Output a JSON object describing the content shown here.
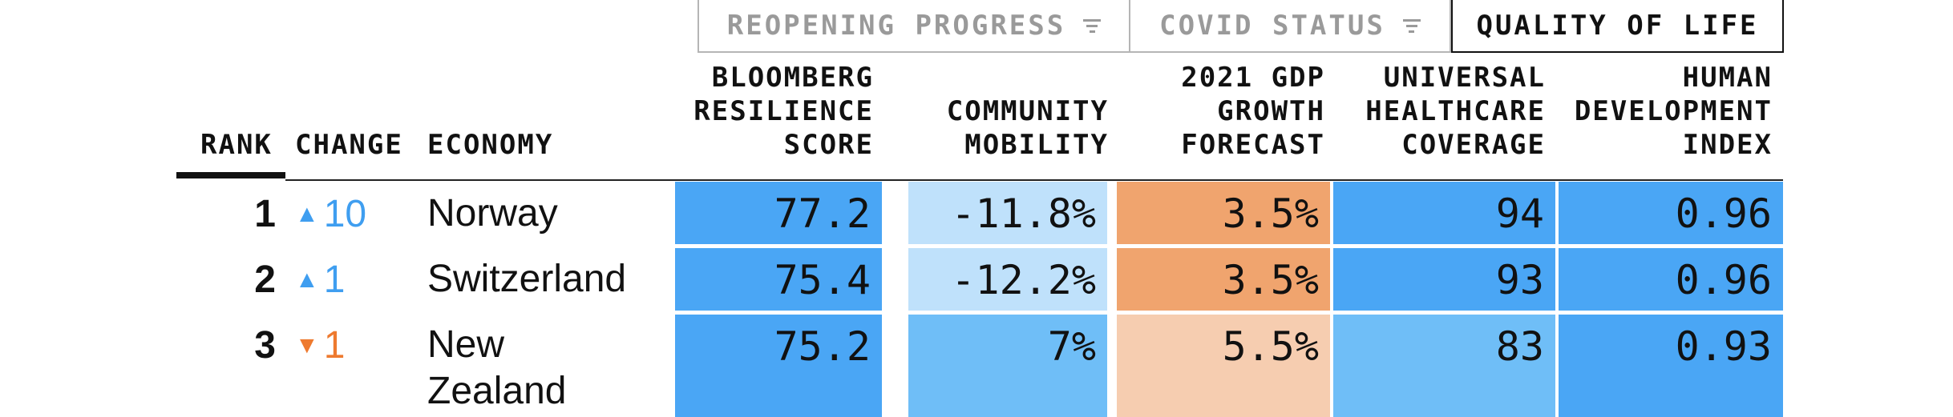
{
  "tabs": {
    "reopening": "REOPENING PROGRESS",
    "covid": "COVID STATUS",
    "quality": "QUALITY OF LIFE"
  },
  "headers": {
    "rank": "RANK",
    "change": "CHANGE",
    "economy": "ECONOMY",
    "resilience": "BLOOMBERG\nRESILIENCE\nSCORE",
    "mobility": "COMMUNITY\nMOBILITY",
    "gdp": "2021 GDP\nGROWTH\nFORECAST",
    "healthcare": "UNIVERSAL\nHEALTHCARE\nCOVERAGE",
    "hdi": "HUMAN\nDEVELOPMENT\nINDEX"
  },
  "colors": {
    "dark_blue": "#4aa6f5",
    "mid_blue": "#6fbef7",
    "light_blue": "#bfe1fb",
    "dark_orange": "#f0a46e",
    "light_orange": "#f6cdb0",
    "up": "#3f9ef0",
    "down": "#ee7a2f"
  },
  "rows": [
    {
      "rank": "1",
      "change_dir": "up",
      "change_arrow": "▲",
      "change_val": "10",
      "economy": "Norway",
      "resilience": "77.2",
      "mobility": "-11.8%",
      "gdp": "3.5%",
      "healthcare": "94",
      "hdi": "0.96"
    },
    {
      "rank": "2",
      "change_dir": "up",
      "change_arrow": "▲",
      "change_val": "1",
      "economy": "Switzerland",
      "resilience": "75.4",
      "mobility": "-12.2%",
      "gdp": "3.5%",
      "healthcare": "93",
      "hdi": "0.96"
    },
    {
      "rank": "3",
      "change_dir": "down",
      "change_arrow": "▼",
      "change_val": "1",
      "economy": "New\nZealand",
      "resilience": "75.2",
      "mobility": "7%",
      "gdp": "5.5%",
      "healthcare": "83",
      "hdi": "0.93"
    }
  ]
}
